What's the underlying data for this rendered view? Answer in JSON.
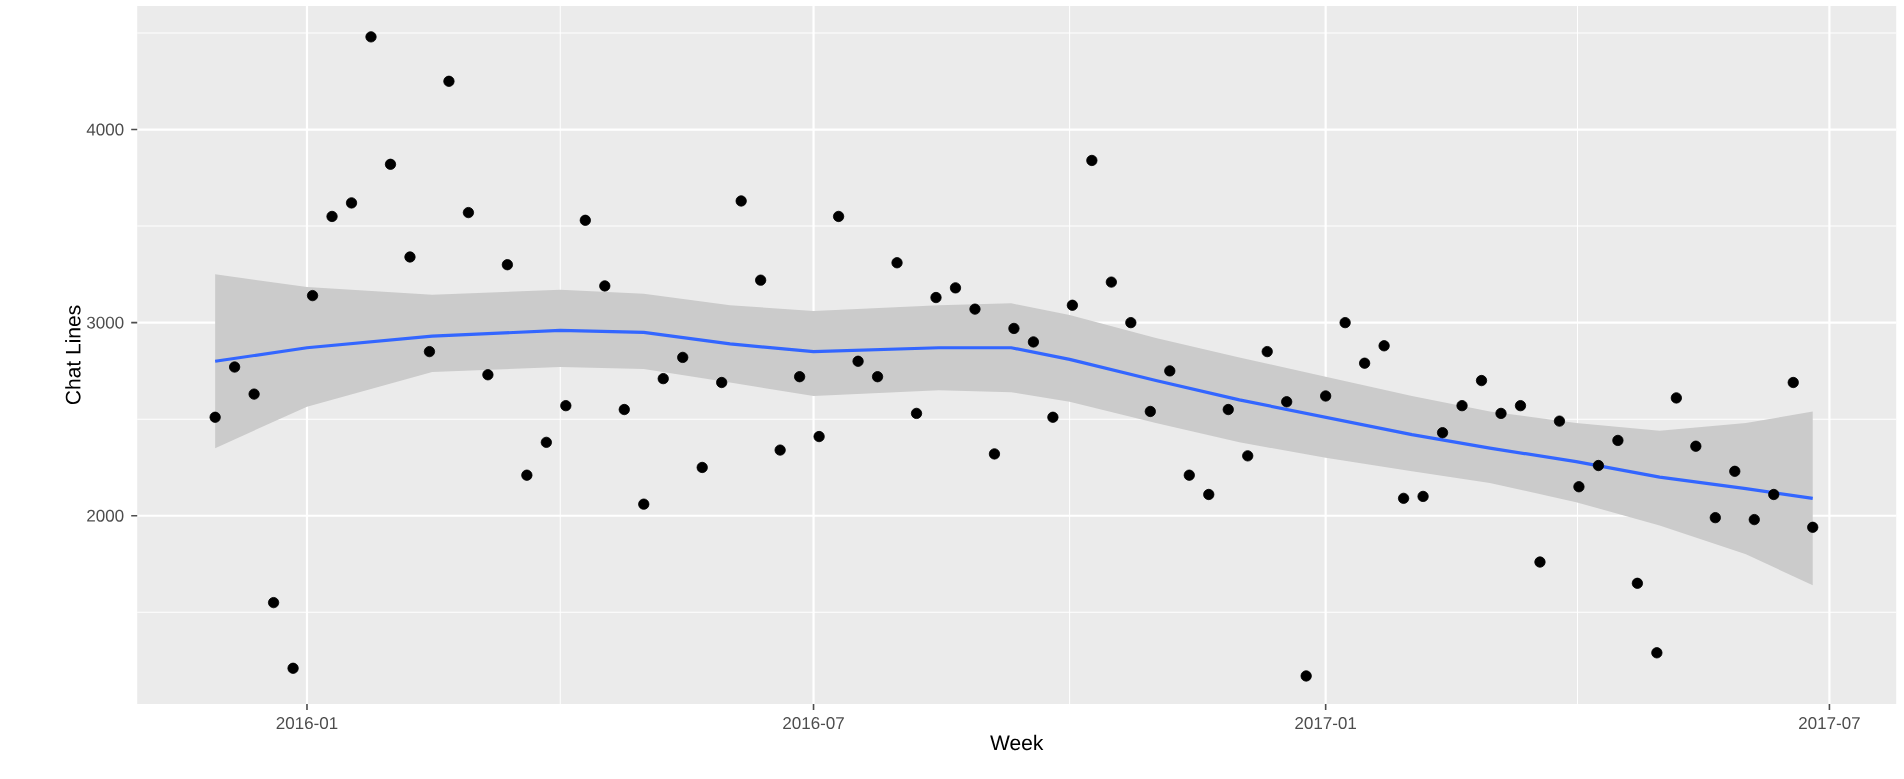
{
  "chart_data": {
    "type": "scatter",
    "xlabel": "Week",
    "ylabel": "Chat Lines",
    "x": [
      "2015-11-29",
      "2015-12-06",
      "2015-12-13",
      "2015-12-20",
      "2015-12-27",
      "2016-01-03",
      "2016-01-10",
      "2016-01-17",
      "2016-01-24",
      "2016-01-31",
      "2016-02-07",
      "2016-02-14",
      "2016-02-21",
      "2016-02-28",
      "2016-03-06",
      "2016-03-13",
      "2016-03-20",
      "2016-03-27",
      "2016-04-03",
      "2016-04-10",
      "2016-04-17",
      "2016-04-24",
      "2016-05-01",
      "2016-05-08",
      "2016-05-15",
      "2016-05-22",
      "2016-05-29",
      "2016-06-05",
      "2016-06-12",
      "2016-06-19",
      "2016-06-26",
      "2016-07-03",
      "2016-07-10",
      "2016-07-17",
      "2016-07-24",
      "2016-07-31",
      "2016-08-07",
      "2016-08-14",
      "2016-08-21",
      "2016-08-28",
      "2016-09-04",
      "2016-09-11",
      "2016-09-18",
      "2016-09-25",
      "2016-10-02",
      "2016-10-09",
      "2016-10-16",
      "2016-10-23",
      "2016-10-30",
      "2016-11-06",
      "2016-11-13",
      "2016-11-20",
      "2016-11-27",
      "2016-12-04",
      "2016-12-11",
      "2016-12-18",
      "2016-12-25",
      "2017-01-01",
      "2017-01-08",
      "2017-01-15",
      "2017-01-22",
      "2017-01-29",
      "2017-02-05",
      "2017-02-12",
      "2017-02-19",
      "2017-02-26",
      "2017-03-05",
      "2017-03-12",
      "2017-03-19",
      "2017-03-26",
      "2017-04-02",
      "2017-04-09",
      "2017-04-16",
      "2017-04-23",
      "2017-04-30",
      "2017-05-07",
      "2017-05-14",
      "2017-05-21",
      "2017-05-28",
      "2017-06-04",
      "2017-06-11",
      "2017-06-18",
      "2017-06-25"
    ],
    "series": [
      {
        "marker": "circle",
        "color": "#000000",
        "values": [
          2510,
          2770,
          2630,
          1550,
          1210,
          3140,
          3550,
          3620,
          4480,
          3820,
          3340,
          2850,
          4250,
          3570,
          2730,
          3300,
          2210,
          2380,
          2570,
          3530,
          3190,
          2550,
          2060,
          2710,
          2820,
          2250,
          2690,
          3630,
          3220,
          2340,
          2720,
          2410,
          3550,
          2800,
          2720,
          3310,
          2530,
          3130,
          3180,
          3070,
          2320,
          2970,
          2900,
          2510,
          3090,
          3840,
          3210,
          3000,
          2540,
          2750,
          2210,
          2110,
          2550,
          2310,
          2850,
          2590,
          1170,
          2620,
          3000,
          2790,
          2880,
          2090,
          2100,
          2430,
          2570,
          2700,
          2530,
          2570,
          1760,
          2490,
          2150,
          2260,
          2390,
          1650,
          1290,
          2610,
          2360,
          1990,
          2230,
          1980,
          2110,
          2690,
          1940
        ]
      },
      {
        "type": "line",
        "marker": "none",
        "color": "#3366ff",
        "x": [
          "2015-11-29",
          "2016-01-01",
          "2016-02-15",
          "2016-04-01",
          "2016-05-01",
          "2016-06-01",
          "2016-07-01",
          "2016-08-15",
          "2016-09-10",
          "2016-10-01",
          "2016-11-01",
          "2016-12-01",
          "2017-01-01",
          "2017-02-01",
          "2017-03-01",
          "2017-04-01",
          "2017-05-01",
          "2017-06-01",
          "2017-06-25"
        ],
        "values": [
          2800,
          2870,
          2930,
          2960,
          2950,
          2890,
          2850,
          2870,
          2870,
          2810,
          2700,
          2600,
          2510,
          2420,
          2350,
          2280,
          2200,
          2140,
          2090
        ],
        "lower": [
          2350,
          2565,
          2745,
          2770,
          2760,
          2690,
          2620,
          2650,
          2640,
          2590,
          2480,
          2380,
          2300,
          2230,
          2170,
          2070,
          1950,
          1800,
          1640
        ],
        "upper": [
          3250,
          3185,
          3145,
          3170,
          3150,
          3090,
          3060,
          3090,
          3100,
          3040,
          2920,
          2820,
          2720,
          2620,
          2540,
          2480,
          2440,
          2480,
          2540
        ]
      }
    ],
    "xlim": [
      "2015-11-01",
      "2017-07-25"
    ],
    "ylim": [
      1025,
      4640
    ],
    "xticks": [
      "2016-01",
      "2016-07",
      "2017-01",
      "2017-07"
    ],
    "yticks": [
      2000,
      3000,
      4000
    ],
    "grid": true,
    "legend": false
  }
}
